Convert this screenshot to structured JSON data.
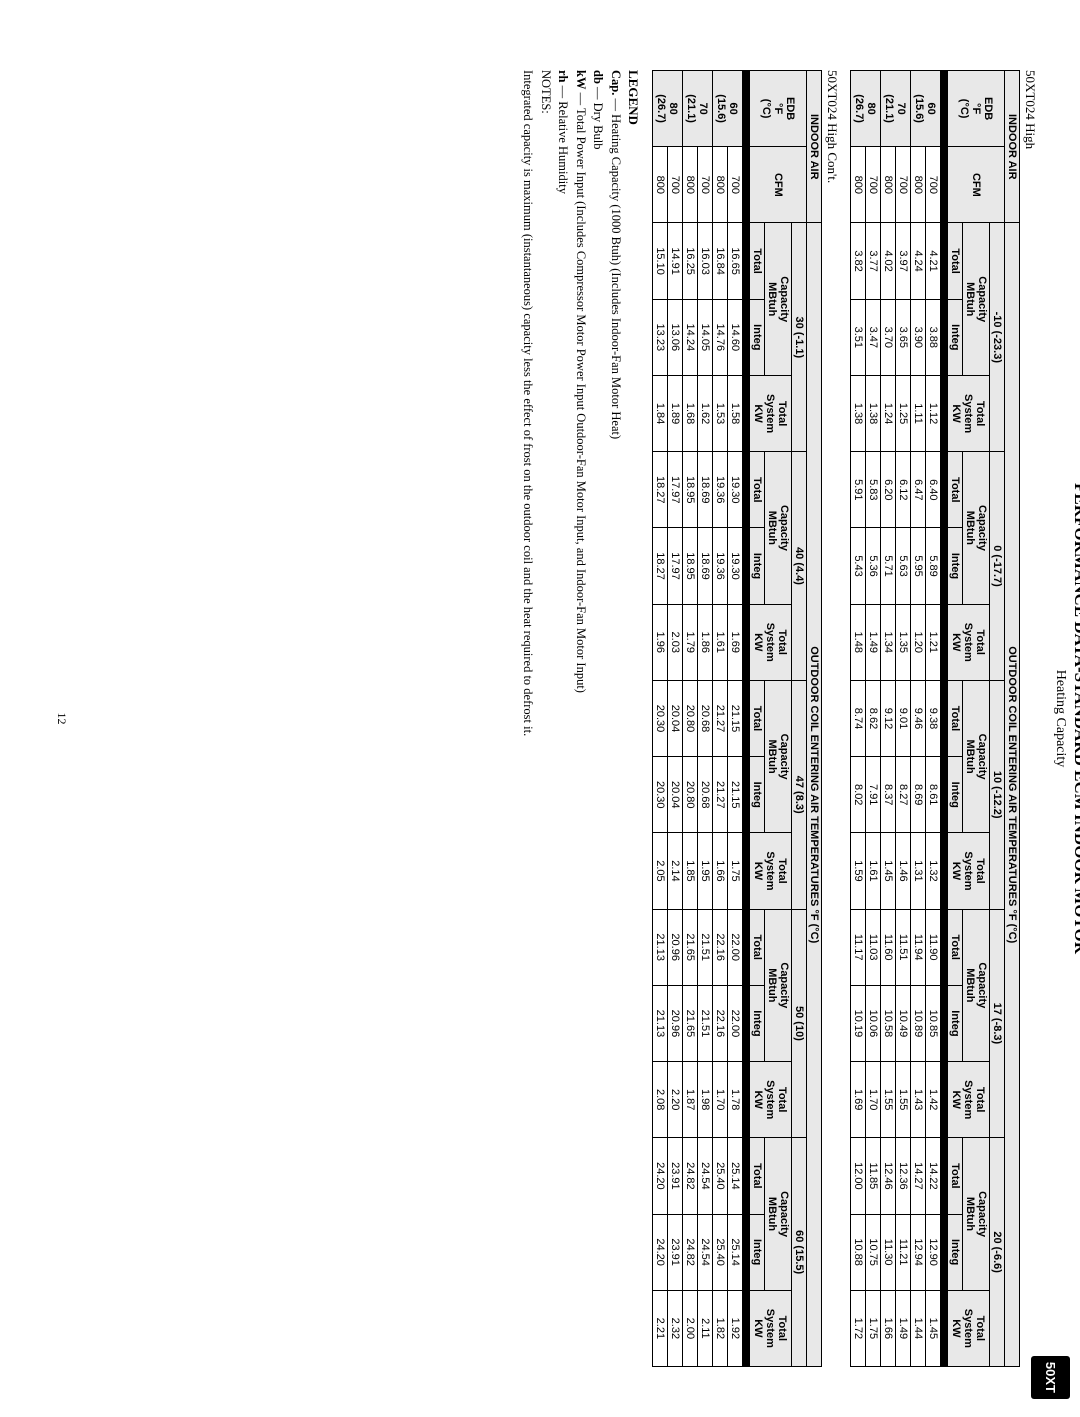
{
  "tab": "50XT",
  "title": "PERFORMANCE DATA-STANDARD ECM INDOOR MOTOR",
  "subtitle": "Heating Capacity",
  "pageNumber": "12",
  "table1": {
    "label": "50XT024 High",
    "outdoorHeader": "OUTDOOR COIL ENTERING AIR TEMPERATURES °F (°C)",
    "indoorAir": "INDOOR AIR",
    "edb": "EDB\n°F\n(°C)",
    "cfm": "CFM",
    "capacityLabel": "Capacity\nMBtuh",
    "systemLabel": "Total\nSystem\nKW",
    "sub": [
      "Total",
      "Integ"
    ],
    "temps": [
      "-10 (-23.3)",
      "0 (-17.7)",
      "10 (-12.2)",
      "17 (-8.3)",
      "20 (-6.6)"
    ],
    "rows": [
      {
        "edb": "60\n(15.6)",
        "cfm": "700",
        "d": [
          [
            "4.21",
            "3.88",
            "1.12"
          ],
          [
            "6.40",
            "5.89",
            "1.21"
          ],
          [
            "9.38",
            "8.61",
            "1.32"
          ],
          [
            "11.90",
            "10.85",
            "1.42"
          ],
          [
            "14.22",
            "12.90",
            "1.45"
          ]
        ]
      },
      {
        "edb": "",
        "cfm": "800",
        "d": [
          [
            "4.24",
            "3.90",
            "1.11"
          ],
          [
            "6.47",
            "5.95",
            "1.20"
          ],
          [
            "9.46",
            "8.69",
            "1.31"
          ],
          [
            "11.94",
            "10.89",
            "1.43"
          ],
          [
            "14.27",
            "12.94",
            "1.44"
          ]
        ]
      },
      {
        "edb": "70\n(21.1)",
        "cfm": "700",
        "d": [
          [
            "3.97",
            "3.65",
            "1.25"
          ],
          [
            "6.12",
            "5.63",
            "1.35"
          ],
          [
            "9.01",
            "8.27",
            "1.46"
          ],
          [
            "11.51",
            "10.49",
            "1.55"
          ],
          [
            "12.36",
            "11.21",
            "1.49"
          ]
        ]
      },
      {
        "edb": "",
        "cfm": "800",
        "d": [
          [
            "4.02",
            "3.70",
            "1.24"
          ],
          [
            "6.20",
            "5.71",
            "1.34"
          ],
          [
            "9.12",
            "8.37",
            "1.45"
          ],
          [
            "11.60",
            "10.58",
            "1.55"
          ],
          [
            "12.46",
            "11.30",
            "1.66"
          ]
        ]
      },
      {
        "edb": "80\n(26.7)",
        "cfm": "700",
        "d": [
          [
            "3.77",
            "3.47",
            "1.38"
          ],
          [
            "5.83",
            "5.36",
            "1.49"
          ],
          [
            "8.62",
            "7.91",
            "1.61"
          ],
          [
            "11.03",
            "10.06",
            "1.70"
          ],
          [
            "11.85",
            "10.75",
            "1.75"
          ]
        ]
      },
      {
        "edb": "",
        "cfm": "800",
        "d": [
          [
            "3.82",
            "3.51",
            "1.38"
          ],
          [
            "5.91",
            "5.43",
            "1.48"
          ],
          [
            "8.74",
            "8.02",
            "1.59"
          ],
          [
            "11.17",
            "10.19",
            "1.69"
          ],
          [
            "12.00",
            "10.88",
            "1.72"
          ]
        ]
      }
    ]
  },
  "table2": {
    "label": "50XT024 High Con't.",
    "temps": [
      "30 (-1.1)",
      "40 (4.4)",
      "47 (8.3)",
      "50 (10)",
      "60 (15.5)"
    ],
    "rows": [
      {
        "edb": "60\n(15.6)",
        "cfm": "700",
        "d": [
          [
            "16.65",
            "14.60",
            "1.58"
          ],
          [
            "19.30",
            "19.30",
            "1.69"
          ],
          [
            "21.15",
            "21.15",
            "1.75"
          ],
          [
            "22.00",
            "22.00",
            "1.78"
          ],
          [
            "25.14",
            "25.14",
            "1.92"
          ]
        ]
      },
      {
        "edb": "",
        "cfm": "800",
        "d": [
          [
            "16.84",
            "14.76",
            "1.53"
          ],
          [
            "19.36",
            "19.36",
            "1.61"
          ],
          [
            "21.27",
            "21.27",
            "1.66"
          ],
          [
            "22.16",
            "22.16",
            "1.70"
          ],
          [
            "25.40",
            "25.40",
            "1.82"
          ]
        ]
      },
      {
        "edb": "70\n(21.1)",
        "cfm": "700",
        "d": [
          [
            "16.03",
            "14.05",
            "1.62"
          ],
          [
            "18.69",
            "18.69",
            "1.86"
          ],
          [
            "20.68",
            "20.68",
            "1.95"
          ],
          [
            "21.51",
            "21.51",
            "1.98"
          ],
          [
            "24.54",
            "24.54",
            "2.11"
          ]
        ]
      },
      {
        "edb": "",
        "cfm": "800",
        "d": [
          [
            "16.25",
            "14.24",
            "1.68"
          ],
          [
            "18.95",
            "18.95",
            "1.79"
          ],
          [
            "20.80",
            "20.80",
            "1.85"
          ],
          [
            "21.65",
            "21.65",
            "1.87"
          ],
          [
            "24.82",
            "24.82",
            "2.00"
          ]
        ]
      },
      {
        "edb": "80\n(26.7)",
        "cfm": "700",
        "d": [
          [
            "14.91",
            "13.06",
            "1.89"
          ],
          [
            "17.97",
            "17.97",
            "2.03"
          ],
          [
            "20.04",
            "20.04",
            "2.14"
          ],
          [
            "20.96",
            "20.96",
            "2.20"
          ],
          [
            "23.91",
            "23.91",
            "2.32"
          ]
        ]
      },
      {
        "edb": "",
        "cfm": "800",
        "d": [
          [
            "15.10",
            "13.23",
            "1.84"
          ],
          [
            "18.27",
            "18.27",
            "1.96"
          ],
          [
            "20.30",
            "20.30",
            "2.05"
          ],
          [
            "21.13",
            "21.13",
            "2.08"
          ],
          [
            "24.20",
            "24.20",
            "2.21"
          ]
        ]
      }
    ]
  },
  "legend": {
    "title": "LEGEND",
    "items": [
      {
        "k": "Cap.",
        "v": "— Heating Capacity (1000 Btuh) (Includes Indoor-Fan Motor Heat)"
      },
      {
        "k": "db",
        "v": "— Dry Bulb"
      },
      {
        "k": "kW",
        "v": "— Total Power Input (Includes Compressor Motor Power Input Outdoor-Fan Motor Input, and Indoor-Fan Motor Input)"
      },
      {
        "k": "rh",
        "v": "— Relative Humidity"
      }
    ],
    "notesLabel": "NOTES:",
    "notes": "Integrated capacity is maximum (instantaneous) capacity less the effect of frost on the outdoor coil and the heat required to defrost it."
  }
}
